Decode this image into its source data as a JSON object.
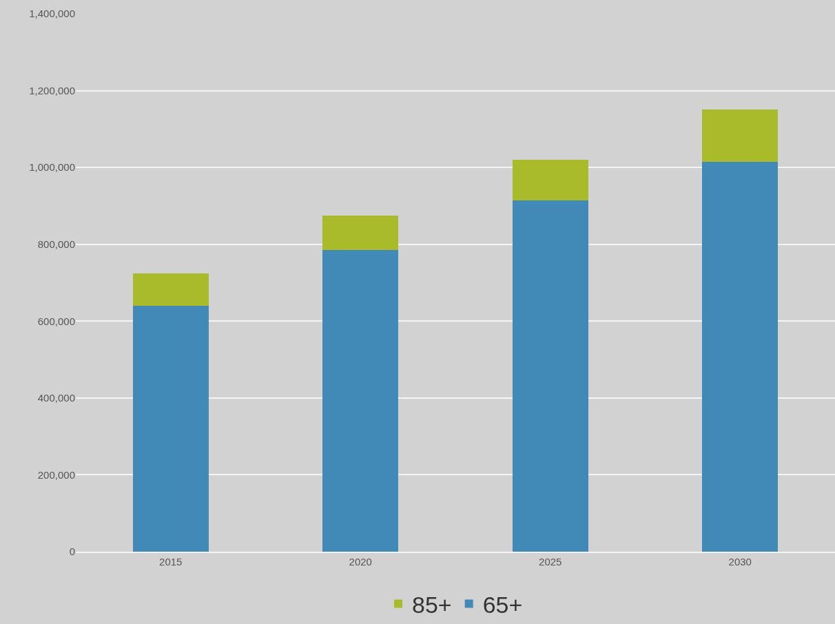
{
  "chart_data": {
    "type": "bar",
    "stacked": true,
    "categories": [
      "2015",
      "2020",
      "2025",
      "2030"
    ],
    "series": [
      {
        "name": "65+",
        "color": "#4189b6",
        "values": [
          640000,
          785000,
          915000,
          1015000
        ]
      },
      {
        "name": "85+",
        "color": "#a9bb2a",
        "values": [
          85000,
          90000,
          105000,
          135000
        ]
      }
    ],
    "ylim": [
      0,
      1400000
    ],
    "yticks": [
      {
        "value": 0,
        "label": "0"
      },
      {
        "value": 200000,
        "label": "200,000"
      },
      {
        "value": 400000,
        "label": "400,000"
      },
      {
        "value": 600000,
        "label": "600,000"
      },
      {
        "value": 800000,
        "label": "800,000"
      },
      {
        "value": 1000000,
        "label": "1,000,000"
      },
      {
        "value": 1200000,
        "label": "1,200,000"
      },
      {
        "value": 1400000,
        "label": "1,400,000"
      }
    ],
    "grid": "y",
    "legend": "bottom"
  }
}
